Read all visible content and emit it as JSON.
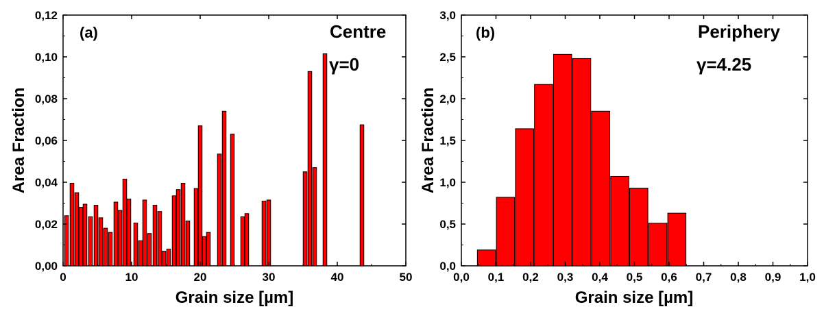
{
  "chart_data": [
    {
      "type": "bar",
      "panel_label": "(a)",
      "annotations": [
        "Centre",
        "γ=0"
      ],
      "xlabel": "Grain size [µm]",
      "ylabel": "Area Fraction",
      "xlim": [
        0,
        50
      ],
      "ylim": [
        0,
        0.12
      ],
      "x_ticks": [
        "0",
        "10",
        "20",
        "30",
        "40",
        "50"
      ],
      "y_ticks": [
        "0,00",
        "0,02",
        "0,04",
        "0,06",
        "0,08",
        "0,10",
        "0,12"
      ],
      "bar_width": 0.55,
      "color": "#ff0000",
      "x": [
        0.5,
        1.3,
        2.0,
        2.6,
        3.2,
        4.0,
        4.8,
        5.5,
        6.2,
        6.9,
        7.7,
        8.3,
        9.0,
        9.6,
        10.6,
        11.3,
        11.9,
        12.6,
        13.4,
        14.1,
        14.7,
        15.4,
        16.2,
        16.8,
        17.5,
        18.2,
        19.4,
        20.0,
        20.6,
        21.2,
        22.8,
        23.5,
        24.7,
        26.2,
        26.8,
        29.3,
        30.0,
        35.3,
        36.0,
        36.7,
        38.2,
        43.6
      ],
      "values": [
        0.024,
        0.0395,
        0.035,
        0.028,
        0.0295,
        0.0235,
        0.029,
        0.023,
        0.018,
        0.016,
        0.0305,
        0.0265,
        0.0415,
        0.032,
        0.0205,
        0.012,
        0.0315,
        0.0155,
        0.029,
        0.026,
        0.007,
        0.008,
        0.0335,
        0.0365,
        0.0395,
        0.0215,
        0.037,
        0.067,
        0.014,
        0.016,
        0.0535,
        0.074,
        0.063,
        0.0235,
        0.025,
        0.031,
        0.0315,
        0.045,
        0.093,
        0.047,
        0.1015,
        0.0675
      ]
    },
    {
      "type": "bar",
      "panel_label": "(b)",
      "annotations": [
        "Periphery",
        "γ=4.25"
      ],
      "xlabel": "Grain size [µm]",
      "ylabel": "Area Fraction",
      "xlim": [
        0,
        1.0
      ],
      "ylim": [
        0,
        3.0
      ],
      "x_ticks": [
        "0,0",
        "0,1",
        "0,2",
        "0,3",
        "0,4",
        "0,5",
        "0,6",
        "0,7",
        "0,8",
        "0,9",
        "1,0"
      ],
      "y_ticks": [
        "0,0",
        "0,5",
        "1,0",
        "1,5",
        "2,0",
        "2,5",
        "3,0"
      ],
      "bar_width": 0.0525,
      "color": "#ff0000",
      "x": [
        0.0725,
        0.1275,
        0.1825,
        0.2375,
        0.2925,
        0.3475,
        0.4025,
        0.4575,
        0.5125,
        0.5675,
        0.6225,
        0.6775
      ],
      "values": [
        0.19,
        0.82,
        1.64,
        2.17,
        2.53,
        2.48,
        1.85,
        1.07,
        0.93,
        0.51,
        0.63,
        0
      ],
      "note_x_positions": "bar centres",
      "visible_bars": 11
    }
  ]
}
